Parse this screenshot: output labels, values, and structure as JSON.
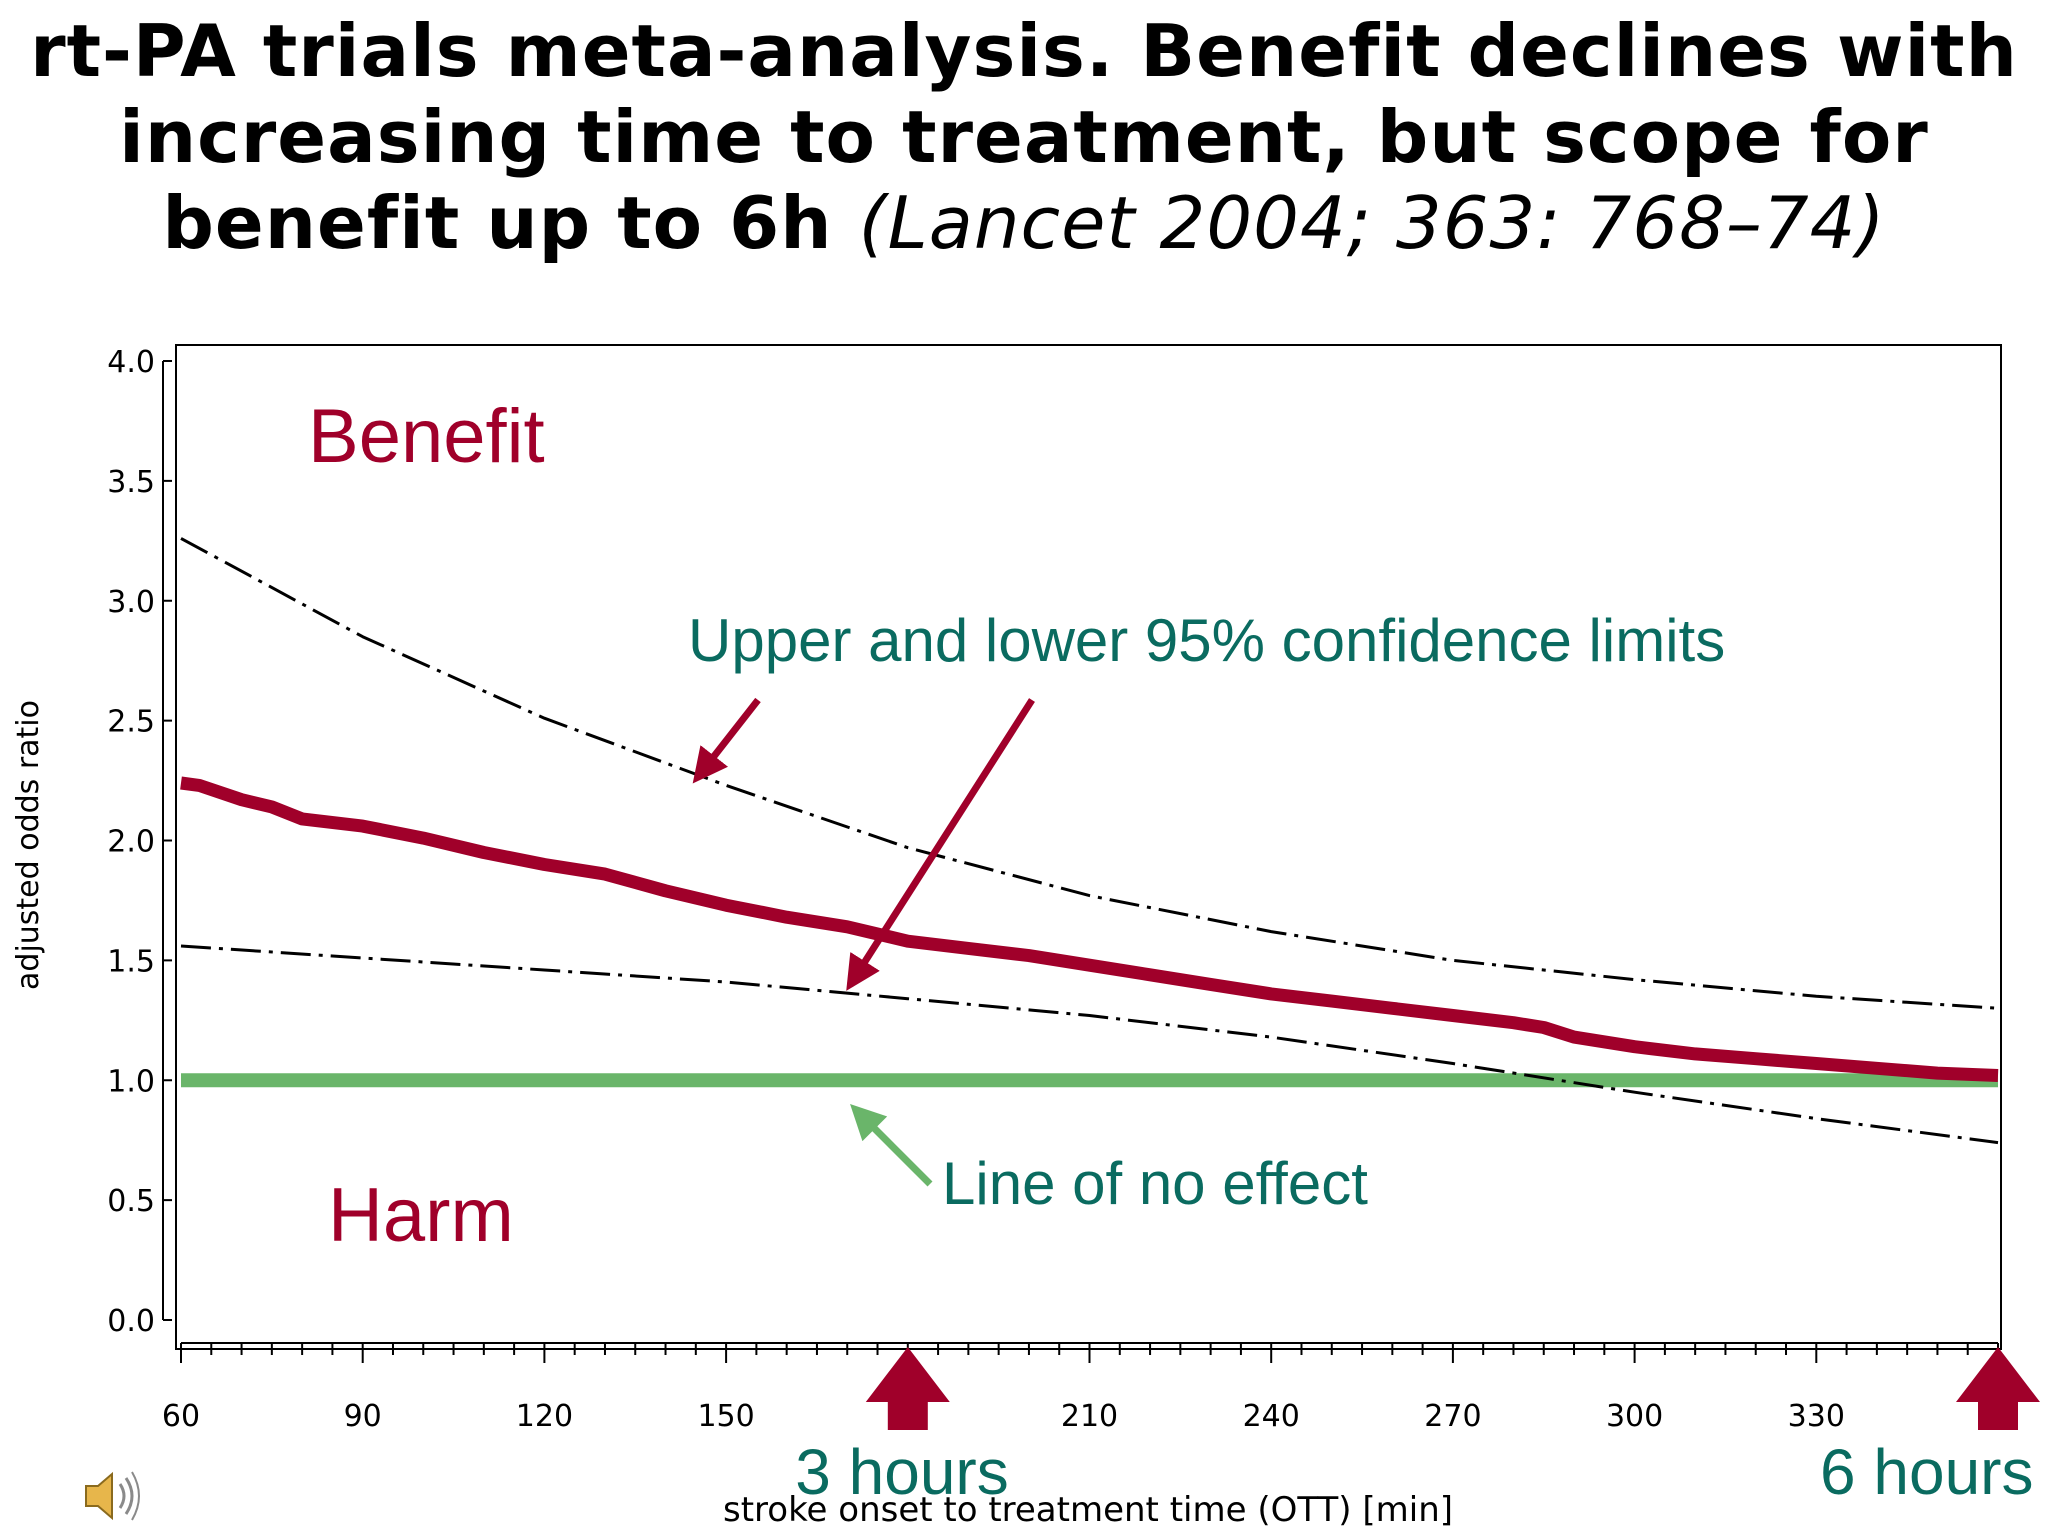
{
  "title": {
    "line1": "rt-PA trials meta-analysis. Benefit declines with",
    "line2": "increasing time to treatment, but scope for",
    "line3_bold": "benefit up to 6h ",
    "line3_cite": "(Lancet 2004; 363: 768–74)"
  },
  "chart_data": {
    "type": "line",
    "title": "",
    "xlabel": "stroke onset to treatment time (OTT) [min]",
    "ylabel": "adjusted odds ratio",
    "xlim": [
      60,
      360
    ],
    "ylim": [
      0,
      4
    ],
    "xticks": [
      60,
      90,
      120,
      150,
      210,
      240,
      270,
      300,
      330
    ],
    "yticks": [
      "0.0",
      "0.5",
      "1.0",
      "1.5",
      "2.0",
      "2.5",
      "3.0",
      "3.5",
      "4.0"
    ],
    "grid": false,
    "series": [
      {
        "name": "",
        "role": "estimate",
        "color": "#a0002a",
        "x": [
          60,
          63,
          70,
          75,
          80,
          90,
          100,
          110,
          120,
          130,
          140,
          150,
          160,
          170,
          180,
          190,
          200,
          210,
          220,
          230,
          240,
          250,
          260,
          270,
          280,
          285,
          290,
          300,
          310,
          320,
          330,
          340,
          350,
          360
        ],
        "y": [
          2.24,
          2.23,
          2.17,
          2.14,
          2.09,
          2.06,
          2.01,
          1.95,
          1.9,
          1.86,
          1.79,
          1.73,
          1.68,
          1.64,
          1.58,
          1.55,
          1.52,
          1.48,
          1.44,
          1.4,
          1.36,
          1.33,
          1.3,
          1.27,
          1.24,
          1.22,
          1.18,
          1.14,
          1.11,
          1.09,
          1.07,
          1.05,
          1.03,
          1.02
        ]
      },
      {
        "name": "",
        "role": "upper 95% CL",
        "color": "#000000",
        "x": [
          60,
          90,
          120,
          150,
          180,
          210,
          240,
          270,
          300,
          330,
          360
        ],
        "y": [
          3.26,
          2.85,
          2.51,
          2.23,
          1.97,
          1.77,
          1.62,
          1.5,
          1.42,
          1.35,
          1.3
        ]
      },
      {
        "name": "",
        "role": "lower 95% CL",
        "color": "#000000",
        "x": [
          60,
          90,
          120,
          150,
          180,
          210,
          240,
          270,
          300,
          330,
          360
        ],
        "y": [
          1.56,
          1.51,
          1.46,
          1.41,
          1.34,
          1.27,
          1.18,
          1.07,
          0.95,
          0.84,
          0.74
        ]
      },
      {
        "name": "",
        "role": "line of no effect",
        "color": "#6ab56a",
        "x": [
          60,
          360
        ],
        "y": [
          1.0,
          1.0
        ]
      }
    ],
    "annotations": {
      "benefit": {
        "text": "Benefit",
        "color": "#a0002a"
      },
      "harm": {
        "text": "Harm",
        "color": "#a0002a"
      },
      "ci": {
        "text": "Upper and lower 95% confidence limits",
        "color": "#0a6b60"
      },
      "noeffect": {
        "text": "Line of no effect",
        "color": "#0a6b60"
      },
      "h3": {
        "text": "3 hours",
        "color": "#0a6b60",
        "x": 180
      },
      "h6": {
        "text": "6 hours",
        "color": "#0a6b60",
        "x": 360
      }
    },
    "colors": {
      "arrow": "#a0002a",
      "noeffect_arrow": "#6ab56a"
    }
  },
  "icons": {
    "speaker": "speaker-icon"
  }
}
